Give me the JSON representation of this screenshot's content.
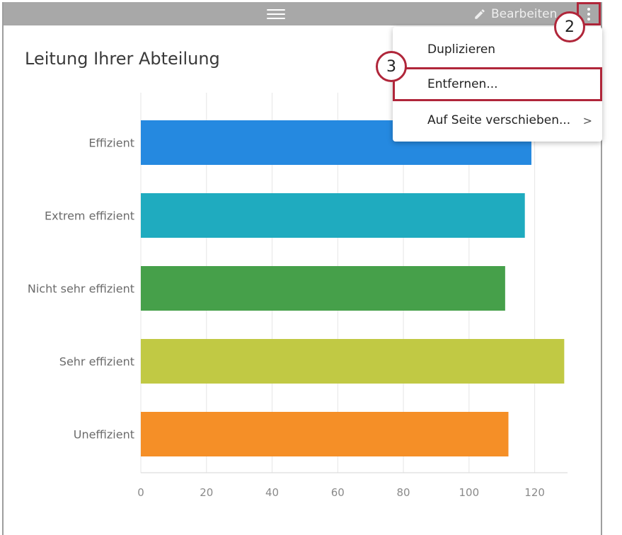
{
  "toolbar": {
    "edit_label": "Bearbeiten",
    "drag_icon": "drag-handle-icon",
    "edit_icon": "pencil-icon",
    "more_icon": "more-vertical-icon"
  },
  "widget": {
    "title": "Leitung Ihrer Abteilung"
  },
  "menu": {
    "items": [
      {
        "label": "Duplizieren"
      },
      {
        "label": "Entfernen..."
      },
      {
        "label": "Auf Seite verschieben...",
        "chevron": ">"
      }
    ]
  },
  "callouts": [
    "2",
    "3"
  ],
  "colors": {
    "accent": "#b0263a",
    "toolbar": "#a8a8a8"
  },
  "chart_data": {
    "type": "bar",
    "orientation": "horizontal",
    "title": "Leitung Ihrer Abteilung",
    "categories": [
      "Effizient",
      "Extrem effizient",
      "Nicht sehr effizient",
      "Sehr effizient",
      "Uneffizient"
    ],
    "values": [
      119,
      117,
      111,
      129,
      112
    ],
    "colors": [
      "#2589e0",
      "#1fabbf",
      "#46a04a",
      "#c1c944",
      "#f58f27"
    ],
    "xlim": [
      0,
      130
    ],
    "xticks": [
      0,
      20,
      40,
      60,
      80,
      100,
      120
    ],
    "grid": true
  }
}
